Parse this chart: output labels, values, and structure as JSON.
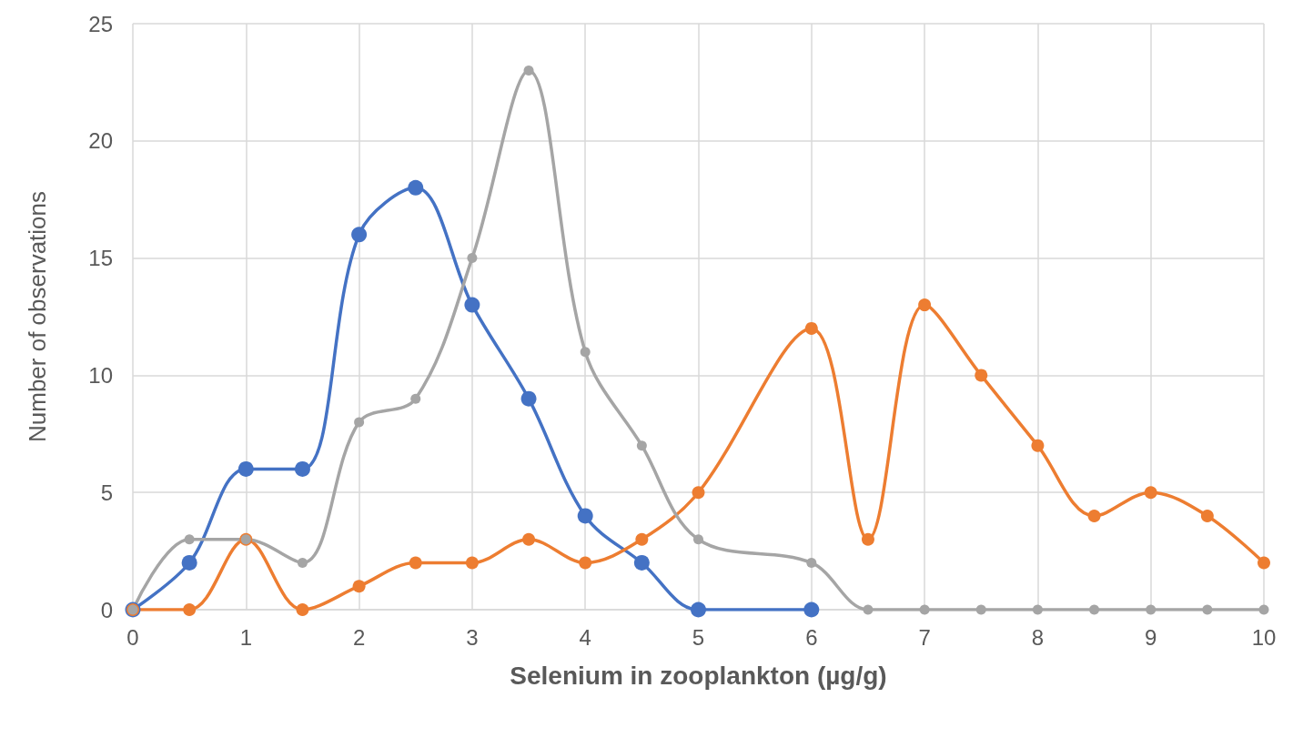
{
  "chart_data": {
    "type": "line",
    "xlabel": "Selenium in zooplankton (µg/g)",
    "ylabel": "Number of observations",
    "xlim": [
      0,
      10
    ],
    "xticks": [
      0,
      1,
      2,
      3,
      4,
      5,
      6,
      7,
      8,
      9,
      10
    ],
    "ylim": [
      0,
      25
    ],
    "yticks": [
      0,
      5,
      10,
      15,
      20,
      25
    ],
    "grid": true,
    "marker": "circle",
    "line_style": "solid",
    "series": [
      {
        "color": "#4472c4",
        "x": [
          0,
          0.5,
          1,
          1.5,
          2,
          2.5,
          3,
          3.5,
          4,
          4.5,
          5,
          6
        ],
        "values": [
          0,
          2,
          6,
          6,
          16,
          18,
          13,
          9,
          4,
          2,
          0,
          0
        ]
      },
      {
        "color": "#ed7d31",
        "x": [
          0,
          0.5,
          1,
          1.5,
          2,
          2.5,
          3,
          3.5,
          4,
          4.5,
          5,
          6,
          6.5,
          7,
          7.5,
          8,
          8.5,
          9,
          9.5,
          10
        ],
        "values": [
          0,
          0,
          3,
          0,
          1,
          2,
          2,
          3,
          2,
          3,
          5,
          12,
          3,
          13,
          10,
          7,
          4,
          5,
          4,
          2
        ]
      },
      {
        "color": "#a5a5a5",
        "x": [
          0,
          0.5,
          1,
          1.5,
          2,
          2.5,
          3,
          3.5,
          4,
          4.5,
          5,
          6,
          6.5,
          7,
          7.5,
          8,
          8.5,
          9,
          9.5,
          10
        ],
        "values": [
          0,
          3,
          3,
          2,
          8,
          9,
          15,
          23,
          11,
          7,
          3,
          2,
          0,
          0,
          0,
          0,
          0,
          0,
          0,
          0
        ]
      }
    ]
  }
}
